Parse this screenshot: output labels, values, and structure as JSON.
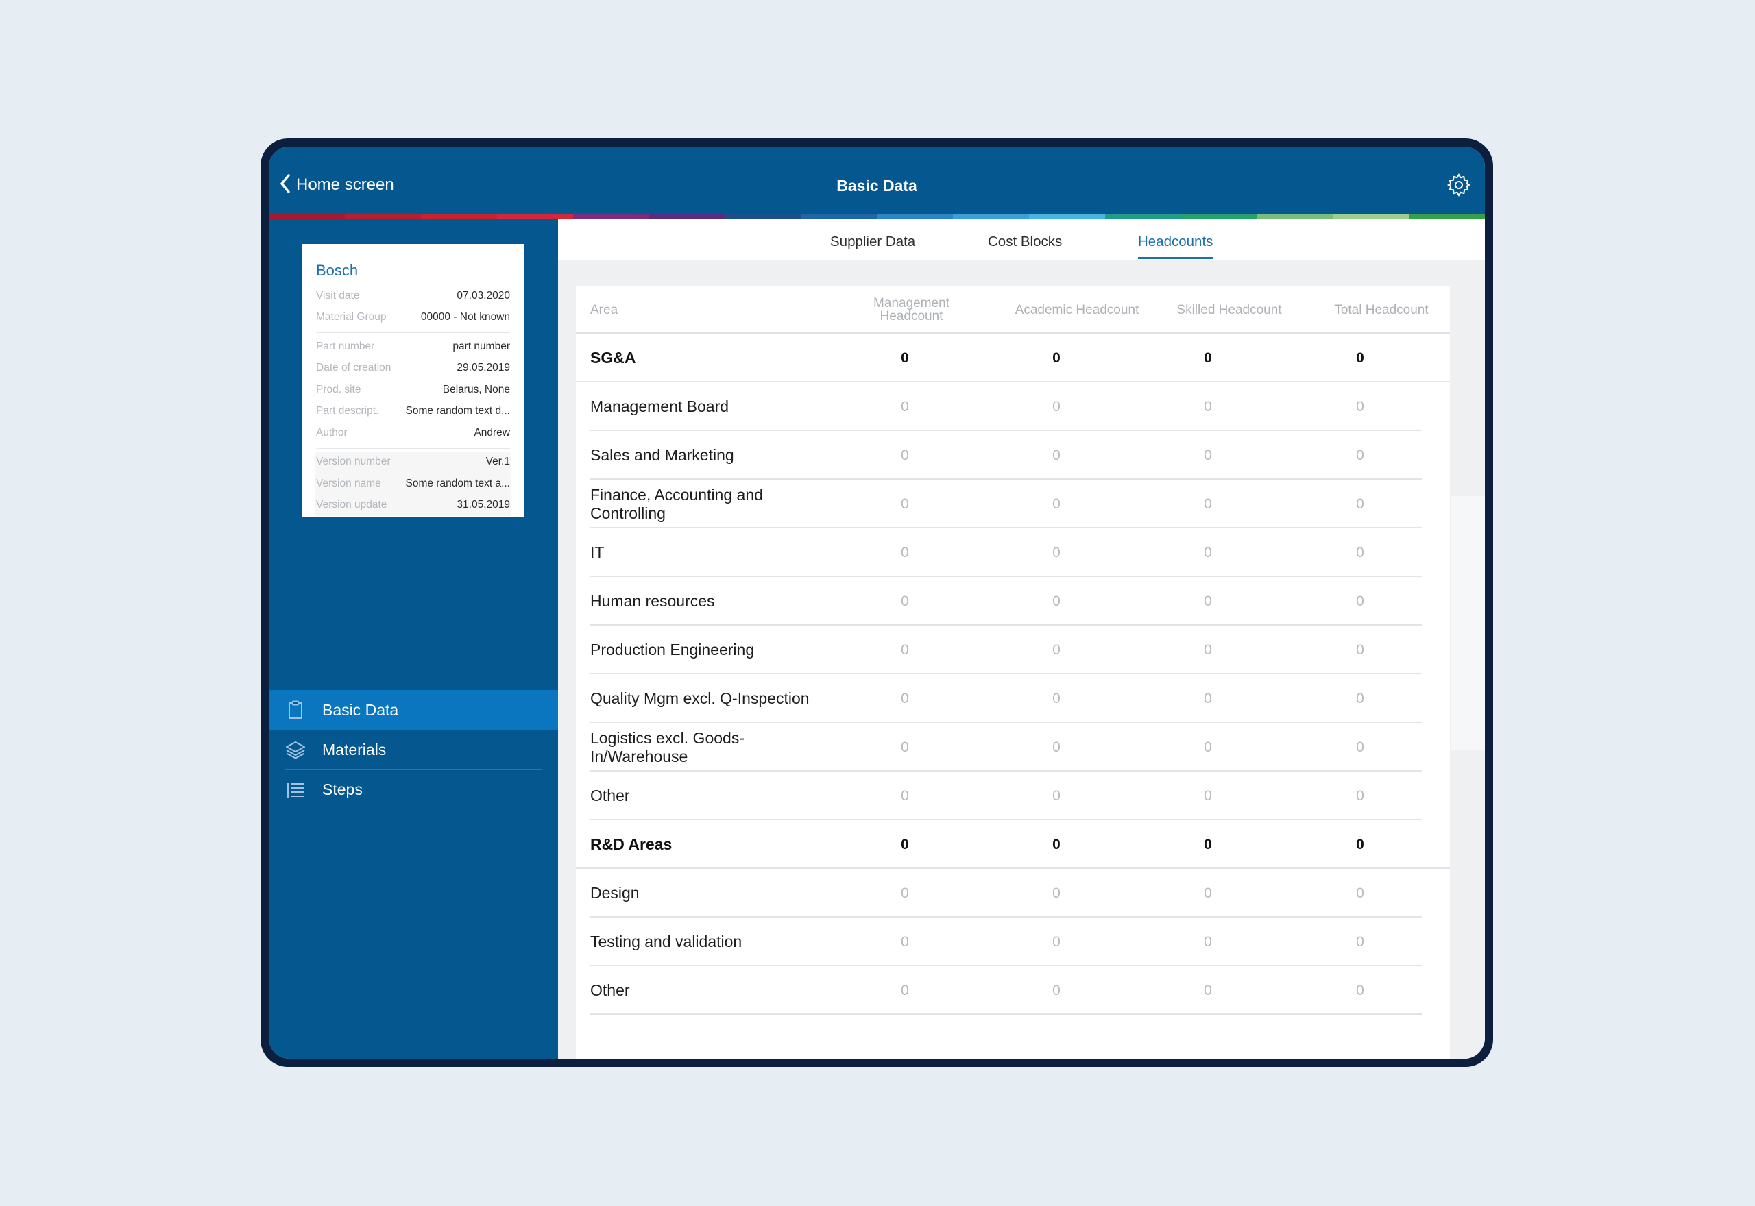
{
  "topbar": {
    "back_label": "Home screen",
    "title": "Basic Data",
    "back_icon": "chevron-left-icon",
    "settings_icon": "gear-icon",
    "color_strip": [
      "#a6192e",
      "#b51f2f",
      "#c8242f",
      "#d4283a",
      "#7d2d7e",
      "#5a2d82",
      "#1d4f8c",
      "#1f66a8",
      "#2a86c7",
      "#3ba0d8",
      "#4ab4e3",
      "#1f9d8a",
      "#25a16c",
      "#78be7a",
      "#9bcd8f",
      "#35a04a"
    ]
  },
  "card": {
    "title": "Bosch",
    "rows1": [
      {
        "label": "Visit date",
        "value": "07.03.2020"
      },
      {
        "label": "Material Group",
        "value": "00000 - Not known"
      }
    ],
    "rows2": [
      {
        "label": "Part number",
        "value": "part number"
      },
      {
        "label": "Date of creation",
        "value": "29.05.2019"
      },
      {
        "label": "Prod. site",
        "value": "Belarus, None"
      },
      {
        "label": "Part descript.",
        "value": "Some random text d..."
      },
      {
        "label": "Author",
        "value": "Andrew"
      }
    ],
    "rows3": [
      {
        "label": "Version number",
        "value": "Ver.1"
      },
      {
        "label": "Version name",
        "value": "Some random text a..."
      },
      {
        "label": "Version update",
        "value": "31.05.2019"
      }
    ]
  },
  "nav": [
    {
      "label": "Basic Data",
      "icon": "clipboard-icon",
      "active": true
    },
    {
      "label": "Materials",
      "icon": "layers-icon",
      "active": false
    },
    {
      "label": "Steps",
      "icon": "list-icon",
      "active": false
    }
  ],
  "tabs": [
    {
      "label": "Supplier Data",
      "active": false
    },
    {
      "label": "Cost Blocks",
      "active": false
    },
    {
      "label": "Headcounts",
      "active": true
    }
  ],
  "table": {
    "headers": {
      "area": "Area",
      "management": "Management Headcount",
      "academic": "Academic Headcount",
      "skilled": "Skilled Headcount",
      "total": "Total Headcount"
    },
    "rows": [
      {
        "area": "SG&A",
        "group": true,
        "values": [
          "0",
          "0",
          "0",
          "0"
        ]
      },
      {
        "area": "Management Board",
        "group": false,
        "values": [
          "0",
          "0",
          "0",
          "0"
        ]
      },
      {
        "area": "Sales and Marketing",
        "group": false,
        "values": [
          "0",
          "0",
          "0",
          "0"
        ]
      },
      {
        "area": "Finance, Accounting and Controlling",
        "group": false,
        "values": [
          "0",
          "0",
          "0",
          "0"
        ]
      },
      {
        "area": "IT",
        "group": false,
        "values": [
          "0",
          "0",
          "0",
          "0"
        ]
      },
      {
        "area": "Human resources",
        "group": false,
        "values": [
          "0",
          "0",
          "0",
          "0"
        ]
      },
      {
        "area": "Production Engineering",
        "group": false,
        "values": [
          "0",
          "0",
          "0",
          "0"
        ]
      },
      {
        "area": "Quality Mgm excl. Q-Inspection",
        "group": false,
        "values": [
          "0",
          "0",
          "0",
          "0"
        ]
      },
      {
        "area": "Logistics excl. Goods-In/Warehouse",
        "group": false,
        "values": [
          "0",
          "0",
          "0",
          "0"
        ]
      },
      {
        "area": "Other",
        "group": false,
        "values": [
          "0",
          "0",
          "0",
          "0"
        ]
      },
      {
        "area": "R&D Areas",
        "group": true,
        "values": [
          "0",
          "0",
          "0",
          "0"
        ]
      },
      {
        "area": "Design",
        "group": false,
        "values": [
          "0",
          "0",
          "0",
          "0"
        ]
      },
      {
        "area": "Testing and validation",
        "group": false,
        "values": [
          "0",
          "0",
          "0",
          "0"
        ]
      },
      {
        "area": "Other",
        "group": false,
        "values": [
          "0",
          "0",
          "0",
          "0"
        ]
      }
    ]
  }
}
